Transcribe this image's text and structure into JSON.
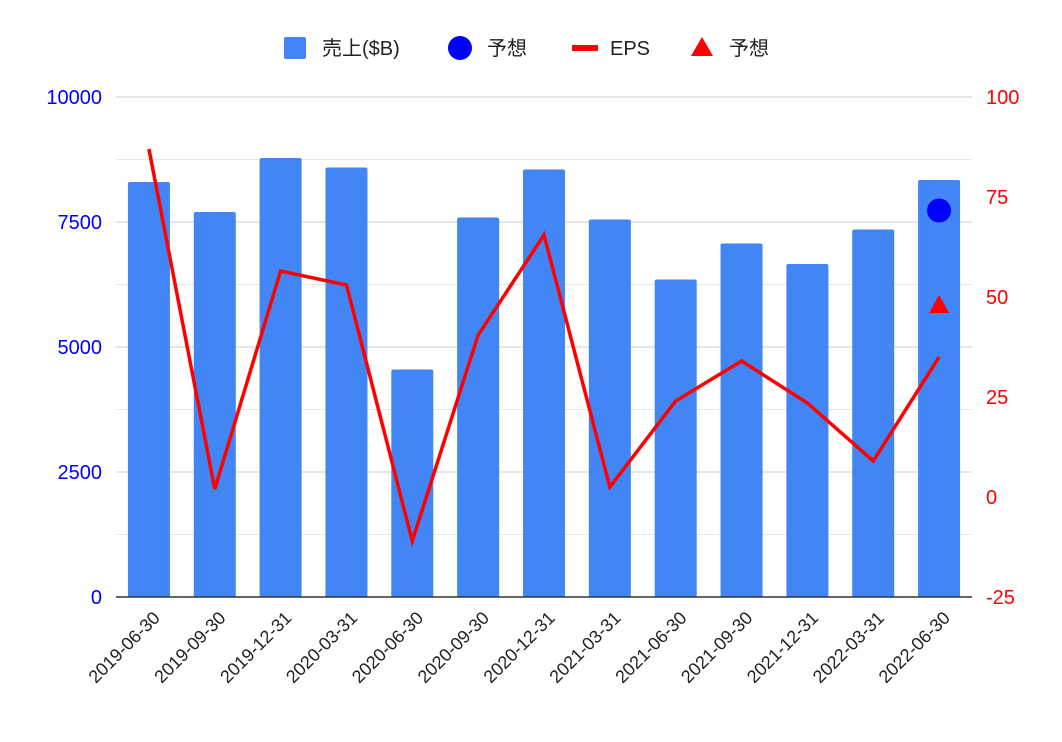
{
  "chart_data": {
    "type": "bar",
    "categories": [
      "2019-06-30",
      "2019-09-30",
      "2019-12-31",
      "2020-03-31",
      "2020-06-30",
      "2020-09-30",
      "2020-12-31",
      "2021-03-31",
      "2021-06-30",
      "2021-09-30",
      "2021-12-31",
      "2022-03-31",
      "2022-06-30"
    ],
    "series": [
      {
        "name": "売上($B)",
        "kind": "bar",
        "axis": "left",
        "color": "#4285f4",
        "values": [
          8300,
          7700,
          8780,
          8590,
          4550,
          7590,
          8550,
          7550,
          6350,
          7070,
          6660,
          7350,
          8340
        ]
      },
      {
        "name": "予想",
        "kind": "point",
        "marker": "circle",
        "axis": "left",
        "color": "#0000ff",
        "values": [
          null,
          null,
          null,
          null,
          null,
          null,
          null,
          null,
          null,
          null,
          null,
          null,
          7730
        ]
      },
      {
        "name": "EPS",
        "kind": "line",
        "axis": "right",
        "color": "#ff0000",
        "values": [
          87,
          2,
          56.5,
          53,
          -11,
          40.5,
          65.5,
          2.5,
          24,
          34,
          23.5,
          9,
          35
        ]
      },
      {
        "name": "予想",
        "kind": "point",
        "marker": "triangle",
        "axis": "right",
        "color": "#ff0000",
        "values": [
          null,
          null,
          null,
          null,
          null,
          null,
          null,
          null,
          null,
          null,
          null,
          null,
          48
        ]
      }
    ],
    "y_left": {
      "ticks": [
        "0",
        "2500",
        "5000",
        "7500",
        "10000"
      ],
      "lim": [
        0,
        10000
      ],
      "color": "#0000ff"
    },
    "y_right": {
      "ticks": [
        "-25",
        "0",
        "25",
        "50",
        "75",
        "100"
      ],
      "lim": [
        -25,
        100
      ],
      "color": "#ff0000"
    },
    "title": "",
    "xlabel": "",
    "ylabel": "",
    "grid": true,
    "legend_position": "top"
  }
}
